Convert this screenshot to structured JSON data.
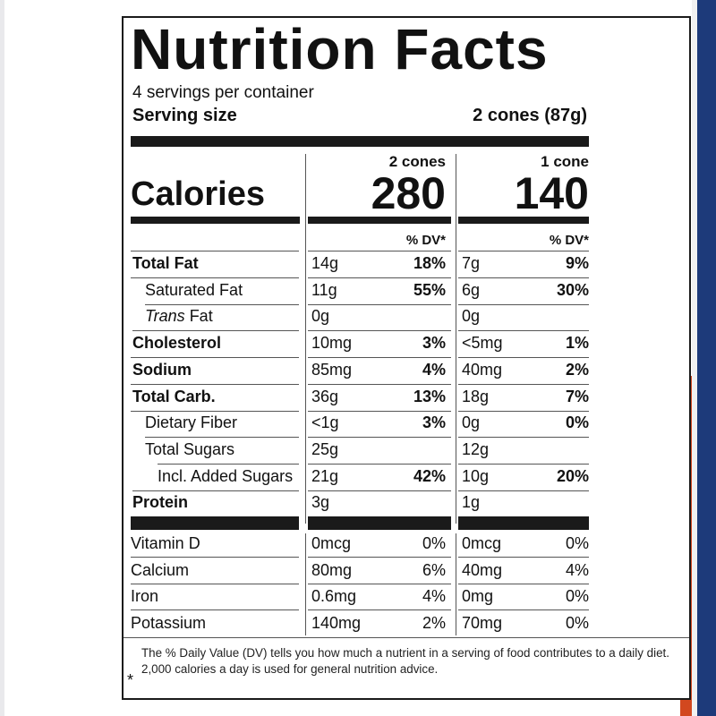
{
  "title": "Nutrition Facts",
  "servings_per_container": "4 servings per container",
  "serving_size": {
    "label": "Serving size",
    "value": "2 cones (87g)"
  },
  "columns": [
    {
      "header": "2 cones",
      "calories": "280"
    },
    {
      "header": "1 cone",
      "calories": "140"
    }
  ],
  "calories_label": "Calories",
  "dv_header": "% DV*",
  "nutrients": [
    {
      "name": "Total Fat",
      "bold": true,
      "indent": 0,
      "c1": "14g",
      "d1": "18%",
      "c2": "7g",
      "d2": "9%"
    },
    {
      "name": "Saturated Fat",
      "bold": false,
      "indent": 1,
      "c1": "11g",
      "d1": "55%",
      "c2": "6g",
      "d2": "30%"
    },
    {
      "name_italic": "Trans",
      "name_rest": " Fat",
      "bold": false,
      "indent": 1,
      "c1": "0g",
      "d1": "",
      "c2": "0g",
      "d2": ""
    },
    {
      "name": "Cholesterol",
      "bold": true,
      "indent": 0,
      "c1": "10mg",
      "d1": "3%",
      "c2": "<5mg",
      "d2": "1%"
    },
    {
      "name": "Sodium",
      "bold": true,
      "indent": 0,
      "c1": "85mg",
      "d1": "4%",
      "c2": "40mg",
      "d2": "2%"
    },
    {
      "name": "Total Carb.",
      "bold": true,
      "indent": 0,
      "c1": "36g",
      "d1": "13%",
      "c2": "18g",
      "d2": "7%"
    },
    {
      "name": "Dietary Fiber",
      "bold": false,
      "indent": 1,
      "c1": "<1g",
      "d1": "3%",
      "c2": "0g",
      "d2": "0%"
    },
    {
      "name": "Total Sugars",
      "bold": false,
      "indent": 1,
      "c1": "25g",
      "d1": "",
      "c2": "12g",
      "d2": ""
    },
    {
      "name": "Incl. Added Sugars",
      "bold": false,
      "indent": 2,
      "c1": "21g",
      "d1": "42%",
      "c2": "10g",
      "d2": "20%"
    },
    {
      "name": "Protein",
      "bold": true,
      "indent": 0,
      "c1": "3g",
      "d1": "",
      "c2": "1g",
      "d2": ""
    }
  ],
  "vitamins": [
    {
      "name": "Vitamin D",
      "c1": "0mcg",
      "d1": "0%",
      "c2": "0mcg",
      "d2": "0%"
    },
    {
      "name": "Calcium",
      "c1": "80mg",
      "d1": "6%",
      "c2": "40mg",
      "d2": "4%"
    },
    {
      "name": "Iron",
      "c1": "0.6mg",
      "d1": "4%",
      "c2": "0mg",
      "d2": "0%"
    },
    {
      "name": "Potassium",
      "c1": "140mg",
      "d1": "2%",
      "c2": "70mg",
      "d2": "0%"
    }
  ],
  "footnote": {
    "star": "*",
    "text": "The % Daily Value (DV) tells you how much a nutrient in a serving of food contributes to a daily diet. 2,000 calories a day is used for general nutrition advice."
  }
}
